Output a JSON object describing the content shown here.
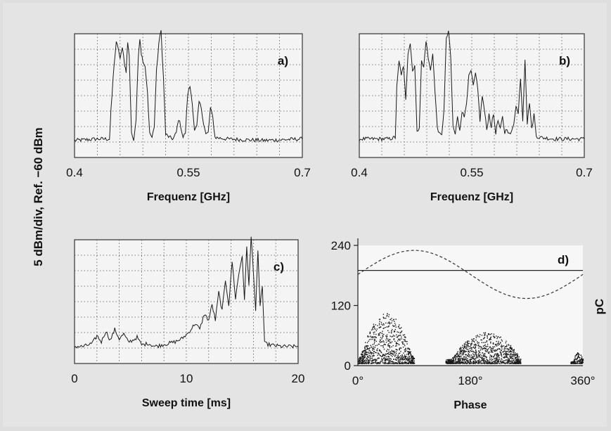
{
  "figure": {
    "ylabel": "5 dBm/div, Ref. −60 dBm",
    "right_ylabel": "pC"
  },
  "chart_data": [
    {
      "id": "a",
      "type": "line",
      "panel_label": "a)",
      "xlabel": "Frequenz [GHz]",
      "xlim": [
        0.4,
        0.7
      ],
      "x_ticks": [
        "0.4",
        "0.55",
        "0.7"
      ],
      "ylim": [
        0,
        8
      ],
      "grid": true,
      "x": [
        0.4,
        0.43,
        0.446,
        0.448,
        0.452,
        0.455,
        0.458,
        0.46,
        0.463,
        0.466,
        0.468,
        0.47,
        0.472,
        0.475,
        0.478,
        0.481,
        0.484,
        0.486,
        0.488,
        0.49,
        0.493,
        0.496,
        0.499,
        0.502,
        0.505,
        0.508,
        0.511,
        0.514,
        0.517,
        0.52,
        0.525,
        0.53,
        0.534,
        0.537,
        0.54,
        0.543,
        0.546,
        0.549,
        0.552,
        0.555,
        0.558,
        0.561,
        0.564,
        0.567,
        0.57,
        0.573,
        0.576,
        0.579,
        0.582,
        0.585,
        0.6,
        0.65,
        0.7
      ],
      "y": [
        1.1,
        1.2,
        1.2,
        3.0,
        6.0,
        7.4,
        7.0,
        6.3,
        7.2,
        6.0,
        5.5,
        7.5,
        6.6,
        1.5,
        1.2,
        2.5,
        6.6,
        7.7,
        6.7,
        6.2,
        5.8,
        4.2,
        1.6,
        1.3,
        2.0,
        5.6,
        7.4,
        8.2,
        5.2,
        1.5,
        1.3,
        1.2,
        1.6,
        2.5,
        2.0,
        1.3,
        1.6,
        4.1,
        4.6,
        3.6,
        1.7,
        2.0,
        3.6,
        3.2,
        2.2,
        1.5,
        1.6,
        3.2,
        2.6,
        1.3,
        1.2,
        1.1,
        1.2
      ]
    },
    {
      "id": "b",
      "type": "line",
      "panel_label": "b)",
      "xlabel": "Frequenz [GHz]",
      "xlim": [
        0.4,
        0.7
      ],
      "x_ticks": [
        "0.4",
        "0.55",
        "0.7"
      ],
      "ylim": [
        0,
        8
      ],
      "grid": true,
      "x": [
        0.4,
        0.44,
        0.448,
        0.45,
        0.453,
        0.456,
        0.459,
        0.462,
        0.465,
        0.468,
        0.471,
        0.474,
        0.477,
        0.48,
        0.483,
        0.486,
        0.489,
        0.492,
        0.495,
        0.498,
        0.501,
        0.504,
        0.507,
        0.51,
        0.513,
        0.516,
        0.519,
        0.522,
        0.525,
        0.528,
        0.531,
        0.534,
        0.537,
        0.54,
        0.543,
        0.546,
        0.549,
        0.552,
        0.555,
        0.558,
        0.561,
        0.564,
        0.567,
        0.57,
        0.573,
        0.576,
        0.579,
        0.582,
        0.585,
        0.588,
        0.591,
        0.594,
        0.597,
        0.6,
        0.603,
        0.606,
        0.609,
        0.612,
        0.615,
        0.618,
        0.621,
        0.624,
        0.627,
        0.63,
        0.633,
        0.636,
        0.64,
        0.66,
        0.7
      ],
      "y": [
        1.2,
        1.2,
        1.3,
        4.5,
        6.2,
        5.4,
        5.8,
        3.8,
        6.8,
        7.4,
        5.6,
        6.0,
        1.6,
        2.0,
        6.2,
        5.8,
        7.6,
        6.4,
        5.6,
        6.8,
        4.2,
        2.0,
        1.5,
        1.4,
        3.2,
        7.6,
        8.2,
        6.4,
        2.0,
        1.5,
        2.6,
        1.8,
        3.0,
        2.6,
        3.6,
        5.2,
        5.6,
        4.6,
        5.4,
        4.4,
        2.4,
        4.0,
        3.0,
        1.8,
        2.8,
        2.0,
        2.8,
        1.6,
        2.4,
        1.8,
        2.6,
        1.6,
        1.9,
        1.5,
        1.6,
        2.2,
        3.4,
        2.8,
        5.2,
        2.4,
        6.4,
        2.2,
        3.6,
        1.8,
        2.8,
        1.4,
        1.3,
        1.2,
        1.2
      ]
    },
    {
      "id": "c",
      "type": "line",
      "panel_label": "c)",
      "xlabel": "Sweep time [ms]",
      "xlim": [
        0,
        20
      ],
      "x_ticks": [
        "0",
        "10",
        "20"
      ],
      "ylim": [
        0,
        8
      ],
      "grid": true,
      "x": [
        0.0,
        0.8,
        1.6,
        2.0,
        2.4,
        2.8,
        3.2,
        3.6,
        4.0,
        4.4,
        4.8,
        5.2,
        5.6,
        6.0,
        6.6,
        7.2,
        7.8,
        8.4,
        9.0,
        9.6,
        10.2,
        10.8,
        11.2,
        11.6,
        12.0,
        12.3,
        12.6,
        12.9,
        13.2,
        13.5,
        13.8,
        14.1,
        14.4,
        14.7,
        15.0,
        15.2,
        15.4,
        15.6,
        15.8,
        16.0,
        16.2,
        16.4,
        16.6,
        16.8,
        17.0,
        17.5,
        18.5,
        20.0
      ],
      "y": [
        1.1,
        1.1,
        1.3,
        1.8,
        1.4,
        2.1,
        1.5,
        2.2,
        1.6,
        1.9,
        1.4,
        1.5,
        1.7,
        1.2,
        1.3,
        1.1,
        1.2,
        1.3,
        1.4,
        1.6,
        2.0,
        2.6,
        2.2,
        3.2,
        2.8,
        3.8,
        2.8,
        4.6,
        3.4,
        5.4,
        3.8,
        6.6,
        4.2,
        5.8,
        7.0,
        4.0,
        7.6,
        5.0,
        8.2,
        6.0,
        3.4,
        7.2,
        3.8,
        5.0,
        1.3,
        1.2,
        1.1,
        1.1
      ]
    },
    {
      "id": "d",
      "type": "scatter",
      "panel_label": "d)",
      "xlabel": "Phase",
      "xlim": [
        0,
        360
      ],
      "x_ticks": [
        "0°",
        "180°",
        "360°"
      ],
      "ylim": [
        0,
        240
      ],
      "y_ticks": [
        "0",
        "120",
        "240"
      ],
      "ylabel": "pC",
      "grid": false,
      "reference_line": 190,
      "sine_overlay": {
        "offset": 182,
        "amplitude": 48,
        "style": "dashed"
      },
      "clusters": [
        {
          "x_range": [
            0,
            90
          ],
          "peak_phase": 45,
          "max_pC": 100,
          "n": 900
        },
        {
          "x_range": [
            140,
            260
          ],
          "peak_phase": 205,
          "max_pC": 62,
          "n": 1100
        },
        {
          "x_range": [
            340,
            360
          ],
          "peak_phase": 352,
          "max_pC": 22,
          "n": 160
        }
      ]
    }
  ]
}
